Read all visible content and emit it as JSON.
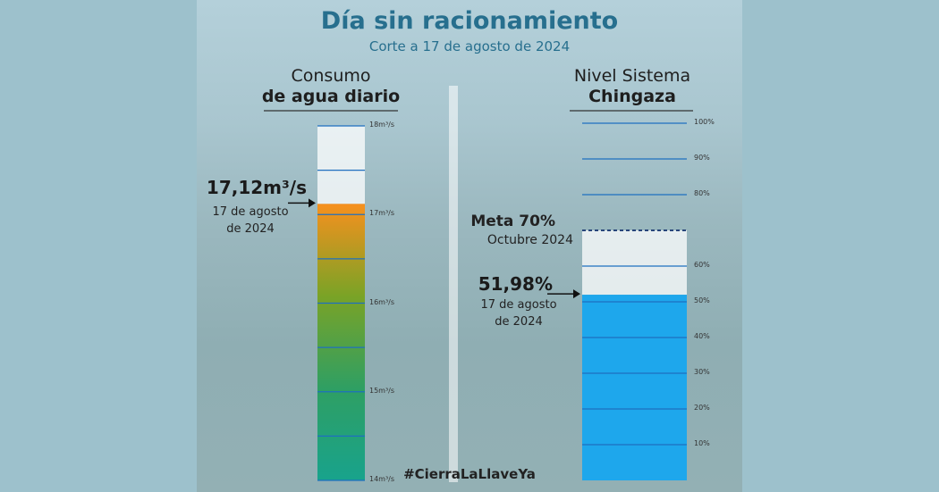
{
  "header": {
    "title": "Día sin racionamiento",
    "subtitle": "Corte a 17 de agosto de 2024"
  },
  "footer": {
    "hashtag": "#CierraLaLlaveYa"
  },
  "chart_data": [
    {
      "type": "gauge",
      "title_lines": [
        "Consumo",
        "de agua diario"
      ],
      "values": [
        17.12
      ],
      "value_labels": [
        "17,12m³/s"
      ],
      "date_lines": [
        "17 de agosto",
        "de 2024"
      ],
      "colors": [
        "#f7901e",
        "#7aa326",
        "#2f9f63",
        "#18a38c"
      ],
      "ylim": [
        14,
        18
      ],
      "yticks": [
        {
          "value": 14,
          "label": "14m³/s"
        },
        {
          "value": 15,
          "label": "15m³/s"
        },
        {
          "value": 16,
          "label": "16m³/s"
        },
        {
          "value": 17,
          "label": "17m³/s"
        },
        {
          "value": 18,
          "label": "18m³/s"
        }
      ],
      "minor_yticks": [
        14.5,
        15.5,
        16.5,
        17.5
      ]
    },
    {
      "type": "gauge",
      "title_lines": [
        "Nivel Sistema",
        "Chingaza"
      ],
      "values": [
        51.98
      ],
      "value_labels": [
        "51,98%"
      ],
      "date_lines": [
        "17 de agosto",
        "de 2024"
      ],
      "colors": [
        "#1ea7ec",
        "#1ea7ec"
      ],
      "target": 70,
      "target_label": "Meta 70%",
      "target_note": "Octubre 2024",
      "ylim": [
        0,
        100
      ],
      "yticks": [
        {
          "value": 10,
          "label": "10%"
        },
        {
          "value": 20,
          "label": "20%"
        },
        {
          "value": 30,
          "label": "30%"
        },
        {
          "value": 40,
          "label": "40%"
        },
        {
          "value": 50,
          "label": "50%"
        },
        {
          "value": 60,
          "label": "60%"
        },
        {
          "value": 80,
          "label": "80%"
        },
        {
          "value": 90,
          "label": "90%"
        },
        {
          "value": 100,
          "label": "100%"
        }
      ]
    }
  ]
}
